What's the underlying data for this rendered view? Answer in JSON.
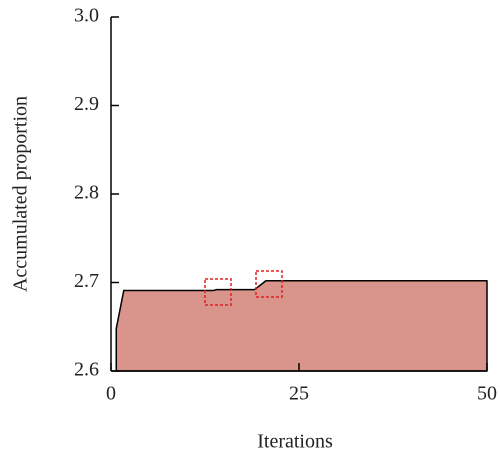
{
  "chart_data": {
    "type": "area",
    "x_label": "Iterations",
    "y_label": "Accumulated proportion",
    "x": [
      0.7,
      1.7,
      13.7,
      14,
      19.1,
      20.6,
      50
    ],
    "series": [
      {
        "name": "Accumulated proportion",
        "color": "#d9958c",
        "values": [
          2.648,
          2.691,
          2.691,
          2.692,
          2.692,
          2.702,
          2.702
        ]
      }
    ],
    "xlim": [
      0,
      50
    ],
    "xticks": [
      0,
      25,
      50
    ],
    "ylim": [
      2.6,
      3.0
    ],
    "yticks": [
      2.6,
      2.7,
      2.8,
      2.9,
      {
        "value": 3.0,
        "label": "3.0"
      }
    ]
  }
}
